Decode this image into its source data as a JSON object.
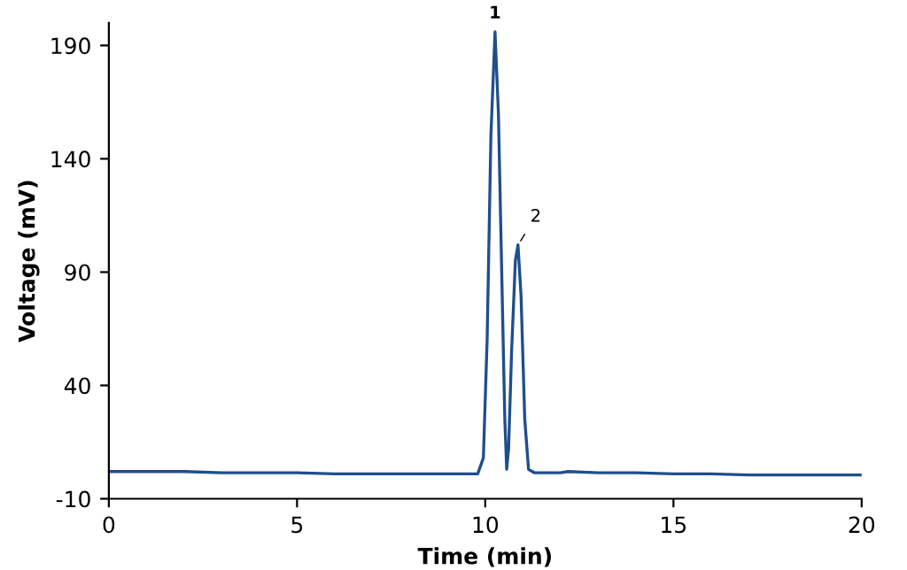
{
  "chart_data": {
    "type": "line",
    "xlabel": "Time (min)",
    "ylabel": "Voltage (mV)",
    "x": [
      0,
      1,
      2,
      3,
      4,
      5,
      6,
      7,
      8,
      9,
      9.8,
      9.95,
      10.05,
      10.15,
      10.26,
      10.35,
      10.45,
      10.52,
      10.57,
      10.62,
      10.7,
      10.8,
      10.87,
      10.95,
      11.05,
      11.15,
      11.3,
      12,
      12.2,
      13,
      14,
      15,
      16,
      17,
      18,
      19,
      20
    ],
    "series": [
      {
        "color": "#1f4e8c",
        "values": [
          2,
          2,
          2,
          1.5,
          1.5,
          1.5,
          1,
          1,
          1,
          1,
          1,
          8,
          60,
          150,
          196,
          160,
          80,
          25,
          3,
          12,
          55,
          95,
          102,
          80,
          25,
          3,
          1.5,
          1.5,
          2,
          1.5,
          1.5,
          1,
          1,
          0.5,
          0.5,
          0.5,
          0.5
        ]
      }
    ],
    "xlim": [
      0,
      20
    ],
    "xticks": [
      0,
      5,
      10,
      15,
      20
    ],
    "ylim": [
      -10,
      200
    ],
    "yticks": [
      -10,
      40,
      90,
      140,
      190
    ],
    "annotations": [
      {
        "text": "1",
        "x": 10.26,
        "y": 196
      },
      {
        "text": "2",
        "x": 10.87,
        "y": 102
      }
    ],
    "grid": false,
    "legend": false,
    "marker": "none",
    "line_style": "solid"
  }
}
